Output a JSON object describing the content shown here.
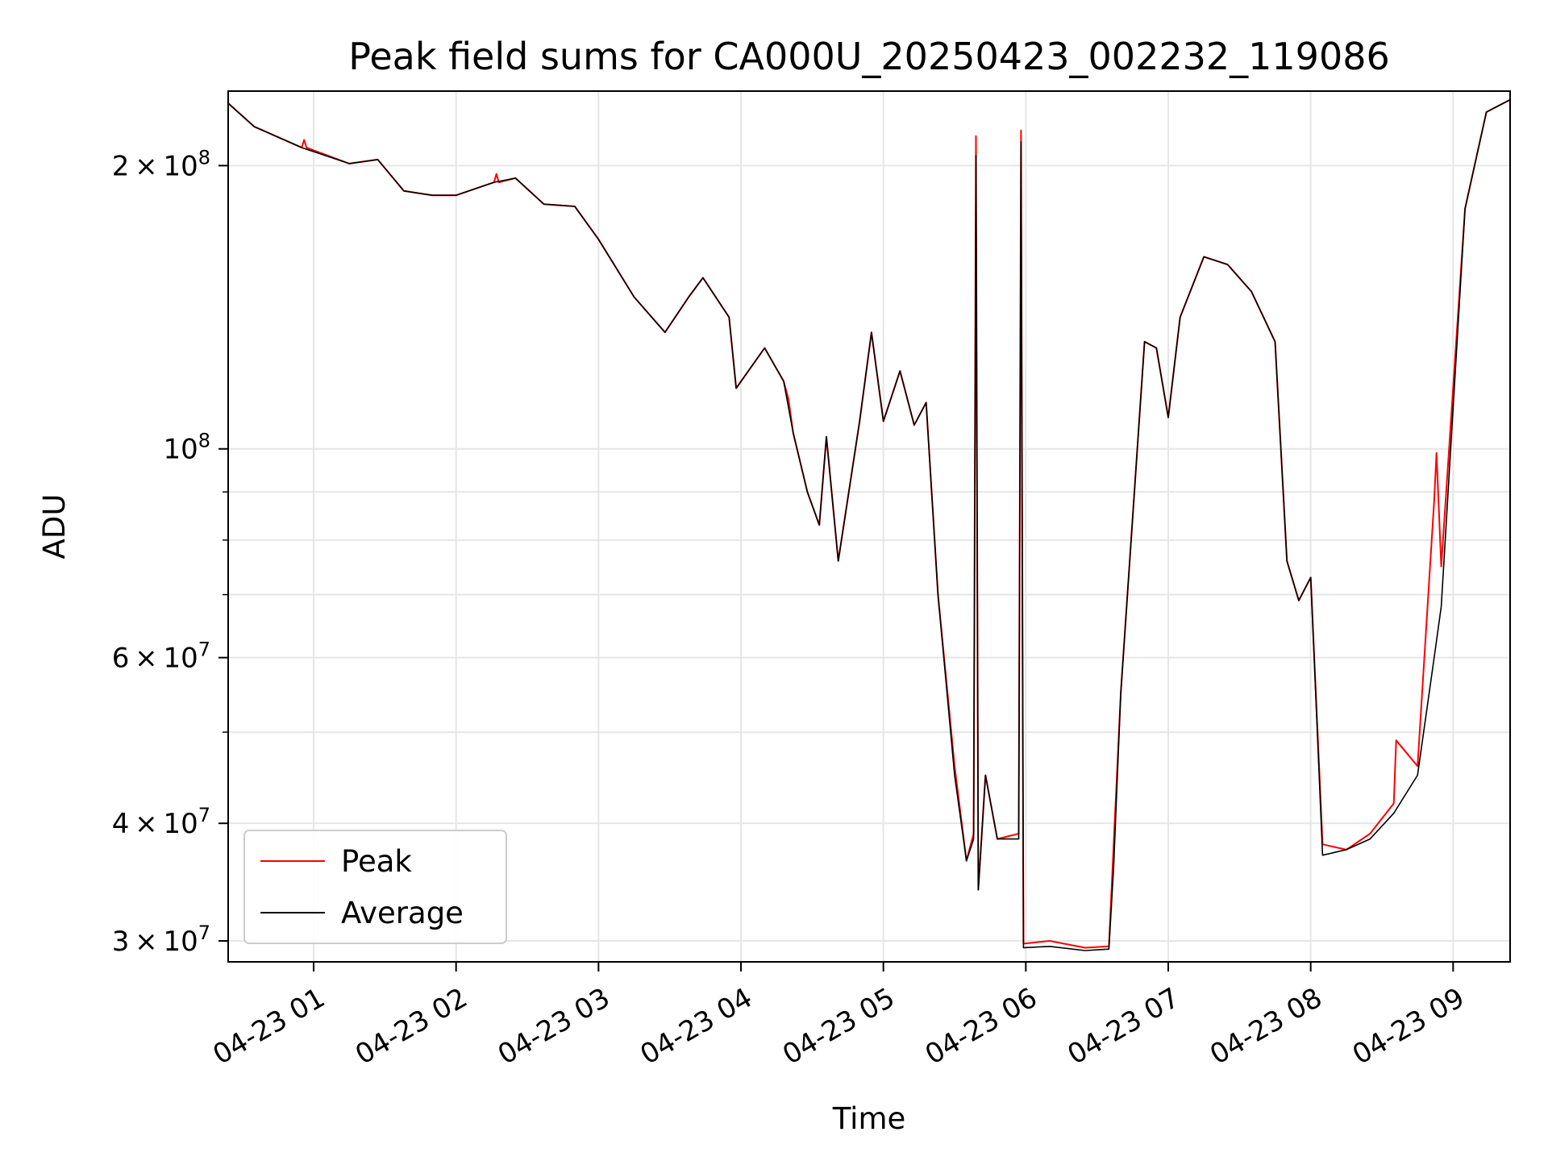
{
  "chart_data": {
    "type": "line",
    "title": "Peak field sums for CA000U_20250423_002232_119086",
    "xlabel": "Time",
    "ylabel": "ADU",
    "y_scale": "log",
    "ylim": [
      28500000,
      240000000
    ],
    "xlim": [
      "2025-04-23 00:24",
      "2025-04-23 09:24"
    ],
    "grid": true,
    "legend_position": "lower-left",
    "x_ticks": [
      {
        "t": "2025-04-23 01:00",
        "label": "04-23 01"
      },
      {
        "t": "2025-04-23 02:00",
        "label": "04-23 02"
      },
      {
        "t": "2025-04-23 03:00",
        "label": "04-23 03"
      },
      {
        "t": "2025-04-23 04:00",
        "label": "04-23 04"
      },
      {
        "t": "2025-04-23 05:00",
        "label": "04-23 05"
      },
      {
        "t": "2025-04-23 06:00",
        "label": "04-23 06"
      },
      {
        "t": "2025-04-23 07:00",
        "label": "04-23 07"
      },
      {
        "t": "2025-04-23 08:00",
        "label": "04-23 08"
      },
      {
        "t": "2025-04-23 09:00",
        "label": "04-23 09"
      }
    ],
    "y_ticks": [
      {
        "v": 30000000,
        "mant": "3",
        "exp": "7"
      },
      {
        "v": 40000000,
        "mant": "4",
        "exp": "7"
      },
      {
        "v": 60000000,
        "mant": "6",
        "exp": "7"
      },
      {
        "v": 100000000,
        "mant": "",
        "exp": "8"
      },
      {
        "v": 200000000,
        "mant": "2",
        "exp": "8"
      }
    ],
    "y_minor_ticks": [
      50000000,
      70000000,
      80000000,
      90000000
    ],
    "series": [
      {
        "name": "Peak",
        "color": "#ff0000",
        "data": [
          [
            "2025-04-23 00:24",
            233000000
          ],
          [
            "2025-04-23 00:35",
            220000000
          ],
          [
            "2025-04-23 00:55",
            209000000
          ],
          [
            "2025-04-23 00:56",
            213000000
          ],
          [
            "2025-04-23 00:57",
            209000000
          ],
          [
            "2025-04-23 01:15",
            201000000
          ],
          [
            "2025-04-23 01:27",
            203000000
          ],
          [
            "2025-04-23 01:38",
            188000000
          ],
          [
            "2025-04-23 01:50",
            186000000
          ],
          [
            "2025-04-23 02:00",
            186000000
          ],
          [
            "2025-04-23 02:16",
            192000000
          ],
          [
            "2025-04-23 02:17",
            196000000
          ],
          [
            "2025-04-23 02:18",
            192000000
          ],
          [
            "2025-04-23 02:25",
            194000000
          ],
          [
            "2025-04-23 02:37",
            182000000
          ],
          [
            "2025-04-23 02:50",
            181000000
          ],
          [
            "2025-04-23 03:00",
            167000000
          ],
          [
            "2025-04-23 03:15",
            145000000
          ],
          [
            "2025-04-23 03:28",
            133000000
          ],
          [
            "2025-04-23 03:38",
            145000000
          ],
          [
            "2025-04-23 03:44",
            152000000
          ],
          [
            "2025-04-23 03:55",
            138000000
          ],
          [
            "2025-04-23 03:58",
            116000000
          ],
          [
            "2025-04-23 04:10",
            128000000
          ],
          [
            "2025-04-23 04:18",
            118000000
          ],
          [
            "2025-04-23 04:20",
            113000000
          ],
          [
            "2025-04-23 04:22",
            104000000
          ],
          [
            "2025-04-23 04:28",
            90000000
          ],
          [
            "2025-04-23 04:33",
            83000000
          ],
          [
            "2025-04-23 04:36",
            103000000
          ],
          [
            "2025-04-23 04:41",
            76000000
          ],
          [
            "2025-04-23 04:50",
            107000000
          ],
          [
            "2025-04-23 04:55",
            133000000
          ],
          [
            "2025-04-23 05:00",
            107000000
          ],
          [
            "2025-04-23 05:07",
            121000000
          ],
          [
            "2025-04-23 05:13",
            106000000
          ],
          [
            "2025-04-23 05:18",
            112000000
          ],
          [
            "2025-04-23 05:23",
            70000000
          ],
          [
            "2025-04-23 05:30",
            46000000
          ],
          [
            "2025-04-23 05:35",
            36500000
          ],
          [
            "2025-04-23 05:38",
            39000000
          ],
          [
            "2025-04-23 05:39",
            215000000
          ],
          [
            "2025-04-23 05:40",
            34000000
          ],
          [
            "2025-04-23 05:43",
            45000000
          ],
          [
            "2025-04-23 05:48",
            38500000
          ],
          [
            "2025-04-23 05:57",
            39000000
          ],
          [
            "2025-04-23 05:58",
            218000000
          ],
          [
            "2025-04-23 05:59",
            29800000
          ],
          [
            "2025-04-23 06:10",
            30000000
          ],
          [
            "2025-04-23 06:25",
            29500000
          ],
          [
            "2025-04-23 06:35",
            29600000
          ],
          [
            "2025-04-23 06:37",
            38000000
          ],
          [
            "2025-04-23 06:40",
            55000000
          ],
          [
            "2025-04-23 06:50",
            130000000
          ],
          [
            "2025-04-23 06:55",
            128000000
          ],
          [
            "2025-04-23 07:00",
            108000000
          ],
          [
            "2025-04-23 07:05",
            138000000
          ],
          [
            "2025-04-23 07:15",
            160000000
          ],
          [
            "2025-04-23 07:25",
            157000000
          ],
          [
            "2025-04-23 07:35",
            147000000
          ],
          [
            "2025-04-23 07:45",
            130000000
          ],
          [
            "2025-04-23 07:50",
            76000000
          ],
          [
            "2025-04-23 07:55",
            69000000
          ],
          [
            "2025-04-23 08:00",
            73000000
          ],
          [
            "2025-04-23 08:05",
            38000000
          ],
          [
            "2025-04-23 08:15",
            37500000
          ],
          [
            "2025-04-23 08:25",
            39000000
          ],
          [
            "2025-04-23 08:35",
            42000000
          ],
          [
            "2025-04-23 08:36",
            49000000
          ],
          [
            "2025-04-23 08:45",
            46000000
          ],
          [
            "2025-04-23 08:52",
            88000000
          ],
          [
            "2025-04-23 08:53",
            99000000
          ],
          [
            "2025-04-23 08:55",
            75000000
          ],
          [
            "2025-04-23 09:05",
            180000000
          ],
          [
            "2025-04-23 09:14",
            228000000
          ],
          [
            "2025-04-23 09:24",
            235000000
          ]
        ]
      },
      {
        "name": "Average",
        "color": "#000000",
        "data": [
          [
            "2025-04-23 00:24",
            233000000
          ],
          [
            "2025-04-23 00:35",
            220000000
          ],
          [
            "2025-04-23 00:55",
            209000000
          ],
          [
            "2025-04-23 01:15",
            201000000
          ],
          [
            "2025-04-23 01:27",
            203000000
          ],
          [
            "2025-04-23 01:38",
            188000000
          ],
          [
            "2025-04-23 01:50",
            186000000
          ],
          [
            "2025-04-23 02:00",
            186000000
          ],
          [
            "2025-04-23 02:16",
            192000000
          ],
          [
            "2025-04-23 02:25",
            194000000
          ],
          [
            "2025-04-23 02:37",
            182000000
          ],
          [
            "2025-04-23 02:50",
            181000000
          ],
          [
            "2025-04-23 03:00",
            167000000
          ],
          [
            "2025-04-23 03:15",
            145000000
          ],
          [
            "2025-04-23 03:28",
            133000000
          ],
          [
            "2025-04-23 03:38",
            145000000
          ],
          [
            "2025-04-23 03:44",
            152000000
          ],
          [
            "2025-04-23 03:55",
            138000000
          ],
          [
            "2025-04-23 03:58",
            116000000
          ],
          [
            "2025-04-23 04:10",
            128000000
          ],
          [
            "2025-04-23 04:18",
            118000000
          ],
          [
            "2025-04-23 04:22",
            104000000
          ],
          [
            "2025-04-23 04:28",
            90000000
          ],
          [
            "2025-04-23 04:33",
            83000000
          ],
          [
            "2025-04-23 04:36",
            103000000
          ],
          [
            "2025-04-23 04:41",
            76000000
          ],
          [
            "2025-04-23 04:50",
            107000000
          ],
          [
            "2025-04-23 04:55",
            133000000
          ],
          [
            "2025-04-23 05:00",
            107000000
          ],
          [
            "2025-04-23 05:07",
            121000000
          ],
          [
            "2025-04-23 05:13",
            106000000
          ],
          [
            "2025-04-23 05:18",
            112000000
          ],
          [
            "2025-04-23 05:23",
            70000000
          ],
          [
            "2025-04-23 05:30",
            45000000
          ],
          [
            "2025-04-23 05:35",
            36500000
          ],
          [
            "2025-04-23 05:38",
            38500000
          ],
          [
            "2025-04-23 05:39",
            205000000
          ],
          [
            "2025-04-23 05:40",
            34000000
          ],
          [
            "2025-04-23 05:43",
            45000000
          ],
          [
            "2025-04-23 05:48",
            38500000
          ],
          [
            "2025-04-23 05:57",
            38500000
          ],
          [
            "2025-04-23 05:58",
            212000000
          ],
          [
            "2025-04-23 05:59",
            29500000
          ],
          [
            "2025-04-23 06:10",
            29600000
          ],
          [
            "2025-04-23 06:25",
            29300000
          ],
          [
            "2025-04-23 06:35",
            29400000
          ],
          [
            "2025-04-23 06:37",
            36000000
          ],
          [
            "2025-04-23 06:40",
            55000000
          ],
          [
            "2025-04-23 06:50",
            130000000
          ],
          [
            "2025-04-23 06:55",
            128000000
          ],
          [
            "2025-04-23 07:00",
            108000000
          ],
          [
            "2025-04-23 07:05",
            138000000
          ],
          [
            "2025-04-23 07:15",
            160000000
          ],
          [
            "2025-04-23 07:25",
            157000000
          ],
          [
            "2025-04-23 07:35",
            147000000
          ],
          [
            "2025-04-23 07:45",
            130000000
          ],
          [
            "2025-04-23 07:50",
            76000000
          ],
          [
            "2025-04-23 07:55",
            69000000
          ],
          [
            "2025-04-23 08:00",
            73000000
          ],
          [
            "2025-04-23 08:05",
            37000000
          ],
          [
            "2025-04-23 08:15",
            37500000
          ],
          [
            "2025-04-23 08:25",
            38500000
          ],
          [
            "2025-04-23 08:35",
            41000000
          ],
          [
            "2025-04-23 08:45",
            45000000
          ],
          [
            "2025-04-23 08:52",
            60000000
          ],
          [
            "2025-04-23 08:55",
            68000000
          ],
          [
            "2025-04-23 09:05",
            180000000
          ],
          [
            "2025-04-23 09:14",
            228000000
          ],
          [
            "2025-04-23 09:24",
            235000000
          ]
        ]
      }
    ]
  }
}
